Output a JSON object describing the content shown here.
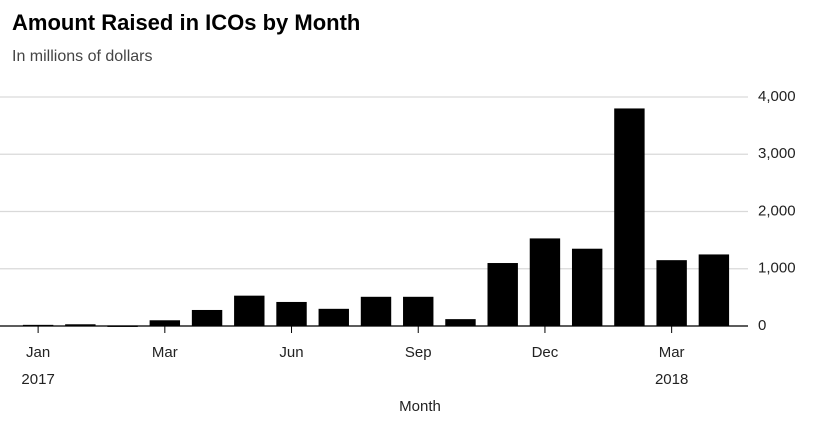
{
  "chart_data": {
    "type": "bar",
    "title": "Amount Raised in ICOs by Month",
    "subtitle": "In millions of dollars",
    "x_label": "Month",
    "categories": [
      "Jan",
      null,
      null,
      "Mar",
      null,
      null,
      "Jun",
      null,
      null,
      "Sep",
      null,
      null,
      "Dec",
      null,
      null,
      "Mar",
      null
    ],
    "category_years": [
      "2017",
      null,
      null,
      null,
      null,
      null,
      null,
      null,
      null,
      null,
      null,
      null,
      null,
      null,
      null,
      "2018",
      null
    ],
    "values": [
      20,
      30,
      10,
      100,
      280,
      530,
      420,
      300,
      510,
      510,
      120,
      1100,
      1530,
      1350,
      3800,
      1150,
      1250
    ],
    "color": "#000000",
    "ylim": [
      0,
      4000
    ],
    "yticks": [
      0,
      {
        "value": 1000,
        "label": "1,000"
      },
      {
        "value": 2000,
        "label": "2,000"
      },
      {
        "value": 3000,
        "label": "3,000"
      },
      {
        "value": 4000,
        "label": "4,000"
      }
    ],
    "grid": true
  }
}
